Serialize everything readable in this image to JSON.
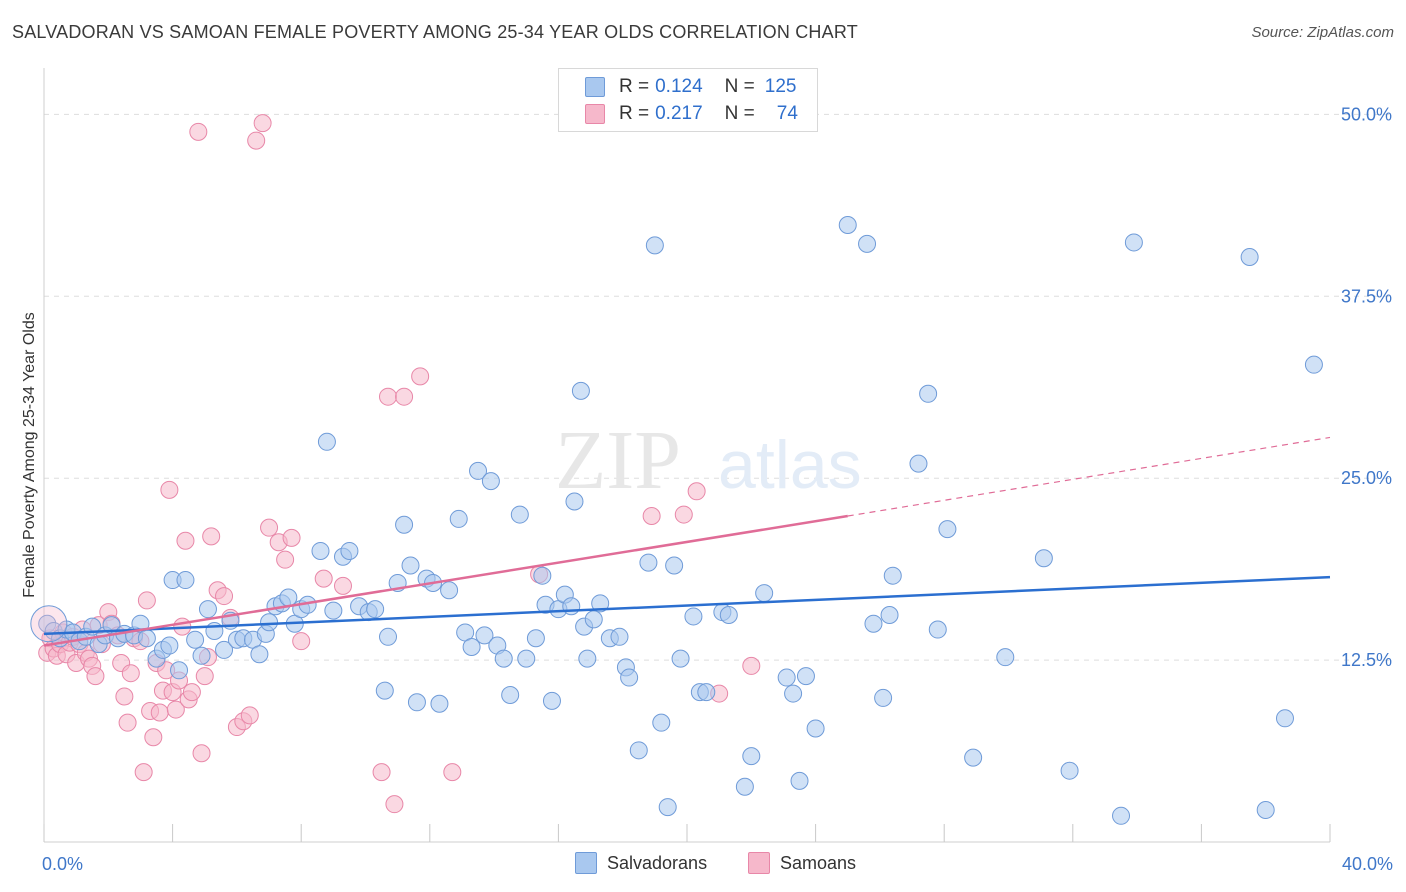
{
  "title": "SALVADORAN VS SAMOAN FEMALE POVERTY AMONG 25-34 YEAR OLDS CORRELATION CHART",
  "source": "Source: ZipAtlas.com",
  "watermark": {
    "zip": "ZIP",
    "atlas": "atlas"
  },
  "colors": {
    "blue_fill": "#a9c8ef",
    "blue_stroke": "#6f9bd8",
    "blue_line": "#2b6fd0",
    "pink_fill": "#f6b8cb",
    "pink_stroke": "#e887a8",
    "pink_line": "#e06c97",
    "tick_label": "#3f77c9",
    "grid": "#dddddd"
  },
  "legend_top": [
    {
      "r_label": "R =",
      "r_value": "0.124",
      "n_label": "N =",
      "n_value": "125"
    },
    {
      "r_label": "R =",
      "r_value": "0.217",
      "n_label": "N =",
      "n_value": "74"
    }
  ],
  "legend_bottom": [
    "Salvadorans",
    "Samoans"
  ],
  "chart_data": {
    "type": "scatter",
    "title": "SALVADORAN VS SAMOAN FEMALE POVERTY AMONG 25-34 YEAR OLDS CORRELATION CHART",
    "xlabel": "",
    "ylabel": "Female Poverty Among 25-34 Year Olds",
    "xlim": [
      0,
      40
    ],
    "ylim": [
      0,
      52.5
    ],
    "x_tick_labels": [
      "0.0%",
      "40.0%"
    ],
    "y_ticks": [
      12.5,
      25.0,
      37.5,
      50.0
    ],
    "y_tick_labels": [
      "12.5%",
      "25.0%",
      "37.5%",
      "50.0%"
    ],
    "grid": true,
    "legend_position": "top-center",
    "series": [
      {
        "name": "Salvadorans",
        "R": 0.124,
        "N": 125,
        "trend": {
          "x": [
            0,
            40
          ],
          "y": [
            14.3,
            18.2
          ]
        },
        "points": [
          [
            0.1,
            15.0
          ],
          [
            0.3,
            14.5
          ],
          [
            0.5,
            14.0
          ],
          [
            0.7,
            14.6
          ],
          [
            0.9,
            14.4
          ],
          [
            1.1,
            13.8
          ],
          [
            1.3,
            14.1
          ],
          [
            1.5,
            14.8
          ],
          [
            1.7,
            13.6
          ],
          [
            1.9,
            14.2
          ],
          [
            2.1,
            14.9
          ],
          [
            2.3,
            14.0
          ],
          [
            2.5,
            14.3
          ],
          [
            2.8,
            14.2
          ],
          [
            3.0,
            15.0
          ],
          [
            3.2,
            14.0
          ],
          [
            3.5,
            12.6
          ],
          [
            3.7,
            13.2
          ],
          [
            3.9,
            13.5
          ],
          [
            4.0,
            18.0
          ],
          [
            4.2,
            11.8
          ],
          [
            4.4,
            18.0
          ],
          [
            4.7,
            13.9
          ],
          [
            4.9,
            12.8
          ],
          [
            5.1,
            16.0
          ],
          [
            5.3,
            14.5
          ],
          [
            5.6,
            13.2
          ],
          [
            5.8,
            15.2
          ],
          [
            6.0,
            13.9
          ],
          [
            6.2,
            14.0
          ],
          [
            6.5,
            13.9
          ],
          [
            6.7,
            12.9
          ],
          [
            6.9,
            14.3
          ],
          [
            7.0,
            15.1
          ],
          [
            7.2,
            16.2
          ],
          [
            7.4,
            16.4
          ],
          [
            7.6,
            16.8
          ],
          [
            7.8,
            15.0
          ],
          [
            8.0,
            16.0
          ],
          [
            8.2,
            16.3
          ],
          [
            8.6,
            20.0
          ],
          [
            8.8,
            27.5
          ],
          [
            9.0,
            15.9
          ],
          [
            9.3,
            19.6
          ],
          [
            9.5,
            20.0
          ],
          [
            9.8,
            16.2
          ],
          [
            10.1,
            15.8
          ],
          [
            10.3,
            16.0
          ],
          [
            10.6,
            10.4
          ],
          [
            10.7,
            14.1
          ],
          [
            11.0,
            17.8
          ],
          [
            11.2,
            21.8
          ],
          [
            11.4,
            19.0
          ],
          [
            11.6,
            9.6
          ],
          [
            11.9,
            18.1
          ],
          [
            12.1,
            17.8
          ],
          [
            12.3,
            9.5
          ],
          [
            12.6,
            17.3
          ],
          [
            12.9,
            22.2
          ],
          [
            13.1,
            14.4
          ],
          [
            13.3,
            13.4
          ],
          [
            13.5,
            25.5
          ],
          [
            13.7,
            14.2
          ],
          [
            13.9,
            24.8
          ],
          [
            14.1,
            13.5
          ],
          [
            14.3,
            12.6
          ],
          [
            14.5,
            10.1
          ],
          [
            14.8,
            22.5
          ],
          [
            15.0,
            12.6
          ],
          [
            15.3,
            14.0
          ],
          [
            15.5,
            18.3
          ],
          [
            15.6,
            16.3
          ],
          [
            15.8,
            9.7
          ],
          [
            16.0,
            16.0
          ],
          [
            16.2,
            17.0
          ],
          [
            16.4,
            16.2
          ],
          [
            16.5,
            23.4
          ],
          [
            16.7,
            31.0
          ],
          [
            16.8,
            14.8
          ],
          [
            16.9,
            12.6
          ],
          [
            17.1,
            15.3
          ],
          [
            17.3,
            16.4
          ],
          [
            17.6,
            14.0
          ],
          [
            17.9,
            14.1
          ],
          [
            18.1,
            12.0
          ],
          [
            18.2,
            11.3
          ],
          [
            18.5,
            6.3
          ],
          [
            18.8,
            19.2
          ],
          [
            19.0,
            41.0
          ],
          [
            19.2,
            8.2
          ],
          [
            19.4,
            2.4
          ],
          [
            19.6,
            19.0
          ],
          [
            19.8,
            12.6
          ],
          [
            20.2,
            15.5
          ],
          [
            20.4,
            10.3
          ],
          [
            20.6,
            10.3
          ],
          [
            21.1,
            15.8
          ],
          [
            21.3,
            15.6
          ],
          [
            21.8,
            3.8
          ],
          [
            22.0,
            5.9
          ],
          [
            22.4,
            17.1
          ],
          [
            23.1,
            11.3
          ],
          [
            23.3,
            10.2
          ],
          [
            23.5,
            4.2
          ],
          [
            23.7,
            11.4
          ],
          [
            24.0,
            7.8
          ],
          [
            25.0,
            42.4
          ],
          [
            25.6,
            41.1
          ],
          [
            25.8,
            15.0
          ],
          [
            26.1,
            9.9
          ],
          [
            26.3,
            15.6
          ],
          [
            26.4,
            18.3
          ],
          [
            27.2,
            26.0
          ],
          [
            27.5,
            30.8
          ],
          [
            27.8,
            14.6
          ],
          [
            28.1,
            21.5
          ],
          [
            28.9,
            5.8
          ],
          [
            29.9,
            12.7
          ],
          [
            31.1,
            19.5
          ],
          [
            31.9,
            4.9
          ],
          [
            33.5,
            1.8
          ],
          [
            33.9,
            41.2
          ],
          [
            37.5,
            40.2
          ],
          [
            38.0,
            2.2
          ],
          [
            38.6,
            8.5
          ],
          [
            39.5,
            32.8
          ]
        ]
      },
      {
        "name": "Samoans",
        "R": 0.217,
        "N": 74,
        "trend": {
          "x": [
            0,
            25
          ],
          "y": [
            13.5,
            22.4
          ]
        },
        "trend_extension": {
          "x": [
            25,
            40
          ],
          "y": [
            22.4,
            27.8
          ]
        },
        "points": [
          [
            0.1,
            13.0
          ],
          [
            0.2,
            14.0
          ],
          [
            0.3,
            13.3
          ],
          [
            0.4,
            12.8
          ],
          [
            0.5,
            13.6
          ],
          [
            0.6,
            14.4
          ],
          [
            0.7,
            12.9
          ],
          [
            0.8,
            13.7
          ],
          [
            0.9,
            14.1
          ],
          [
            1.0,
            12.3
          ],
          [
            1.1,
            13.6
          ],
          [
            1.2,
            14.6
          ],
          [
            1.3,
            13.0
          ],
          [
            1.4,
            12.6
          ],
          [
            1.5,
            12.1
          ],
          [
            1.6,
            11.4
          ],
          [
            1.7,
            14.9
          ],
          [
            1.8,
            13.6
          ],
          [
            2.0,
            15.8
          ],
          [
            2.1,
            15.0
          ],
          [
            2.3,
            14.2
          ],
          [
            2.4,
            12.3
          ],
          [
            2.5,
            10.0
          ],
          [
            2.6,
            8.2
          ],
          [
            2.7,
            11.6
          ],
          [
            2.8,
            14.0
          ],
          [
            3.0,
            13.8
          ],
          [
            3.1,
            4.8
          ],
          [
            3.2,
            16.6
          ],
          [
            3.3,
            9.0
          ],
          [
            3.4,
            7.2
          ],
          [
            3.5,
            12.3
          ],
          [
            3.6,
            8.9
          ],
          [
            3.7,
            10.4
          ],
          [
            3.8,
            11.8
          ],
          [
            3.9,
            24.2
          ],
          [
            4.0,
            10.3
          ],
          [
            4.1,
            9.1
          ],
          [
            4.2,
            11.1
          ],
          [
            4.3,
            14.8
          ],
          [
            4.4,
            20.7
          ],
          [
            4.5,
            9.8
          ],
          [
            4.6,
            10.3
          ],
          [
            4.8,
            48.8
          ],
          [
            4.9,
            6.1
          ],
          [
            5.0,
            11.4
          ],
          [
            5.1,
            12.7
          ],
          [
            5.2,
            21.0
          ],
          [
            5.4,
            17.3
          ],
          [
            5.6,
            16.9
          ],
          [
            5.8,
            15.4
          ],
          [
            6.0,
            7.9
          ],
          [
            6.2,
            8.3
          ],
          [
            6.4,
            8.7
          ],
          [
            6.6,
            48.2
          ],
          [
            6.8,
            49.4
          ],
          [
            7.0,
            21.6
          ],
          [
            7.3,
            20.6
          ],
          [
            7.5,
            19.4
          ],
          [
            7.7,
            20.9
          ],
          [
            8.0,
            13.8
          ],
          [
            8.7,
            18.1
          ],
          [
            9.3,
            17.6
          ],
          [
            10.5,
            4.8
          ],
          [
            10.7,
            30.6
          ],
          [
            10.9,
            2.6
          ],
          [
            11.2,
            30.6
          ],
          [
            11.7,
            32.0
          ],
          [
            12.7,
            4.8
          ],
          [
            15.4,
            18.4
          ],
          [
            18.9,
            22.4
          ],
          [
            19.9,
            22.5
          ],
          [
            20.3,
            24.1
          ],
          [
            21.0,
            10.2
          ],
          [
            22.0,
            12.1
          ]
        ]
      }
    ]
  }
}
